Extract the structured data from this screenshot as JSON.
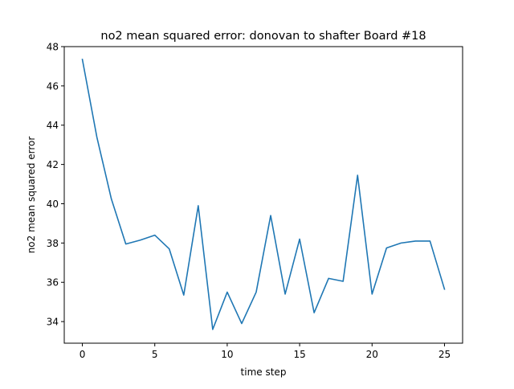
{
  "chart_data": {
    "type": "line",
    "title": "no2 mean squared error: donovan to shafter Board #18",
    "xlabel": "time step",
    "ylabel": "no2 mean squared error",
    "xlim": [
      -1.25,
      26.25
    ],
    "ylim": [
      32.9,
      48.0
    ],
    "xticks": [
      0,
      5,
      10,
      15,
      20,
      25
    ],
    "yticks": [
      34,
      36,
      38,
      40,
      42,
      44,
      46,
      48
    ],
    "grid": false,
    "line_color": "#1f77b4",
    "series": [
      {
        "x": [
          0,
          1,
          2,
          3,
          4,
          5,
          6,
          7,
          8,
          9,
          10,
          11,
          12,
          13,
          14,
          15,
          16,
          17,
          18,
          19,
          20,
          21,
          22,
          23,
          24,
          25
        ],
        "values": [
          47.35,
          43.4,
          40.25,
          37.95,
          38.15,
          38.4,
          37.7,
          35.35,
          39.9,
          33.6,
          35.5,
          33.9,
          35.5,
          39.4,
          35.4,
          38.2,
          34.45,
          36.2,
          36.05,
          41.45,
          35.4,
          37.75,
          38.0,
          38.1,
          38.1,
          35.65
        ]
      }
    ]
  }
}
